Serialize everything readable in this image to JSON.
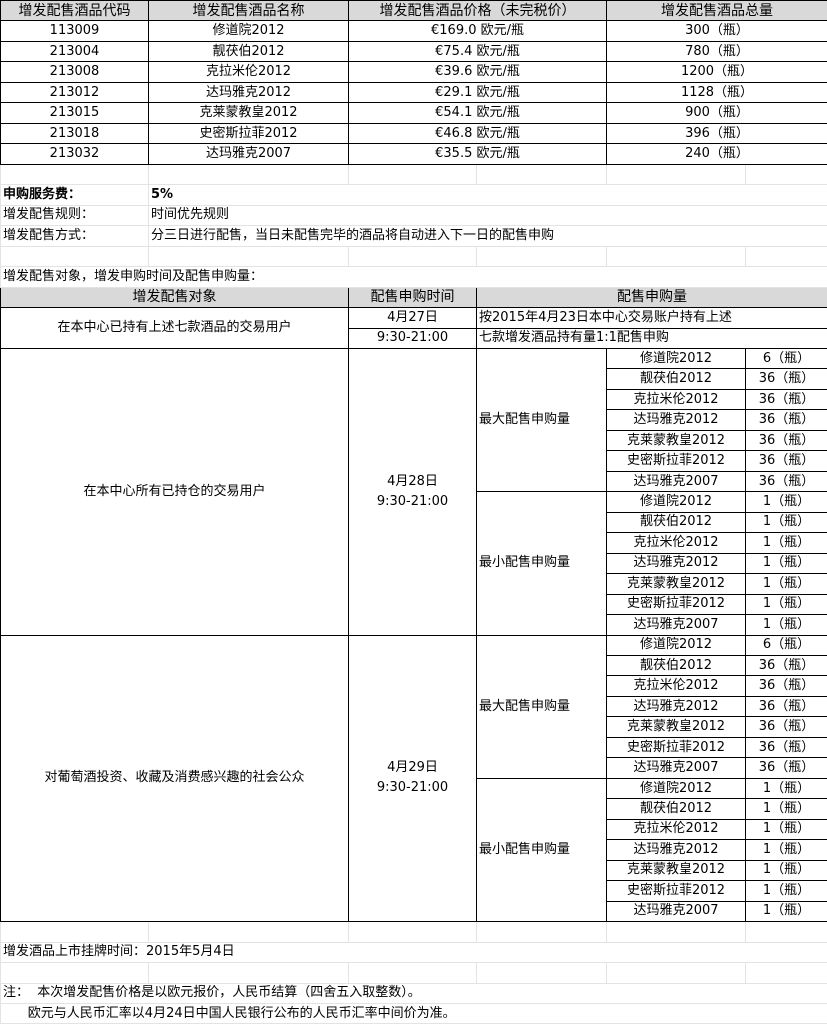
{
  "products_table": {
    "headers": [
      "增发配售酒品代码",
      "增发配售酒品名称",
      "增发配售酒品价格（未完税价）",
      "增发配售酒品总量"
    ],
    "rows": [
      {
        "code": "113009",
        "name": "修道院2012",
        "price": "€169.0 欧元/瓶",
        "total": "300（瓶）"
      },
      {
        "code": "213004",
        "name": "靓茯伯2012",
        "price": "€75.4 欧元/瓶",
        "total": "780（瓶）"
      },
      {
        "code": "213008",
        "name": "克拉米伦2012",
        "price": "€39.6 欧元/瓶",
        "total": "1200（瓶）"
      },
      {
        "code": "213012",
        "name": "达玛雅克2012",
        "price": "€29.1 欧元/瓶",
        "total": "1128（瓶）"
      },
      {
        "code": "213015",
        "name": "克莱蒙教皇2012",
        "price": "€54.1 欧元/瓶",
        "total": "900（瓶）"
      },
      {
        "code": "213018",
        "name": "史密斯拉菲2012",
        "price": "€46.8 欧元/瓶",
        "total": "396（瓶）"
      },
      {
        "code": "213032",
        "name": "达玛雅克2007",
        "price": "€35.5 欧元/瓶",
        "total": "240（瓶）"
      }
    ]
  },
  "info": {
    "fee_label": "申购服务费：",
    "fee_value": "5%",
    "rule_label": "增发配售规则：",
    "rule_value": "时间优先规则",
    "method_label": "增发配售方式：",
    "method_value": "分三日进行配售，当日未配售完毕的酒品将自动进入下一日的配售申购",
    "section_title": "增发配售对象，增发申购时间及配售申购量："
  },
  "allocation_table": {
    "headers": [
      "增发配售对象",
      "配售申购时间",
      "配售申购量"
    ],
    "group1": {
      "target": "在本中心已持有上述七款酒品的交易用户",
      "date": "4月27日",
      "time": "9:30-21:00",
      "qty_line1": "按2015年4月23日本中心交易账户持有上述",
      "qty_line2": "七款增发酒品持有量1:1配售申购"
    },
    "groups": [
      {
        "target": "在本中心所有已持仓的交易用户",
        "date": "4月28日",
        "time": "9:30-21:00",
        "max_label": "最大配售申购量",
        "min_label": "最小配售申购量",
        "max": [
          [
            "修道院2012",
            "6（瓶）"
          ],
          [
            "靓茯伯2012",
            "36（瓶）"
          ],
          [
            "克拉米伦2012",
            "36（瓶）"
          ],
          [
            "达玛雅克2012",
            "36（瓶）"
          ],
          [
            "克莱蒙教皇2012",
            "36（瓶）"
          ],
          [
            "史密斯拉菲2012",
            "36（瓶）"
          ],
          [
            "达玛雅克2007",
            "36（瓶）"
          ]
        ],
        "min": [
          [
            "修道院2012",
            "1（瓶）"
          ],
          [
            "靓茯伯2012",
            "1（瓶）"
          ],
          [
            "克拉米伦2012",
            "1（瓶）"
          ],
          [
            "达玛雅克2012",
            "1（瓶）"
          ],
          [
            "克莱蒙教皇2012",
            "1（瓶）"
          ],
          [
            "史密斯拉菲2012",
            "1（瓶）"
          ],
          [
            "达玛雅克2007",
            "1（瓶）"
          ]
        ]
      },
      {
        "target": "对葡萄酒投资、收藏及消费感兴趣的社会公众",
        "date": "4月29日",
        "time": "9:30-21:00",
        "max_label": "最大配售申购量",
        "min_label": "最小配售申购量",
        "max": [
          [
            "修道院2012",
            "6（瓶）"
          ],
          [
            "靓茯伯2012",
            "36（瓶）"
          ],
          [
            "克拉米伦2012",
            "36（瓶）"
          ],
          [
            "达玛雅克2012",
            "36（瓶）"
          ],
          [
            "克莱蒙教皇2012",
            "36（瓶）"
          ],
          [
            "史密斯拉菲2012",
            "36（瓶）"
          ],
          [
            "达玛雅克2007",
            "36（瓶）"
          ]
        ],
        "min": [
          [
            "修道院2012",
            "1（瓶）"
          ],
          [
            "靓茯伯2012",
            "1（瓶）"
          ],
          [
            "克拉米伦2012",
            "1（瓶）"
          ],
          [
            "达玛雅克2012",
            "1（瓶）"
          ],
          [
            "克莱蒙教皇2012",
            "1（瓶）"
          ],
          [
            "史密斯拉菲2012",
            "1（瓶）"
          ],
          [
            "达玛雅克2007",
            "1（瓶）"
          ]
        ]
      }
    ]
  },
  "footer": {
    "listing": "增发酒品上市挂牌时间：2015年5月4日",
    "note_line1": "注：  本次增发配售价格是以欧元报价，人民币结算（四舍五入取整数）。",
    "note_line2": "      欧元与人民币汇率以4月24日中国人民银行公布的人民币汇率中间价为准。"
  }
}
